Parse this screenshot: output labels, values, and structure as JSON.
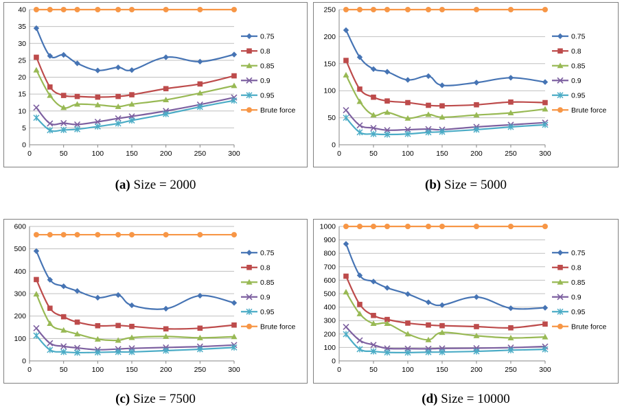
{
  "panels": [
    {
      "caption_letter": "(a)",
      "caption_text": "Size = 2000",
      "chart_data": {
        "type": "line",
        "x": [
          10,
          30,
          50,
          70,
          100,
          130,
          150,
          200,
          250,
          300
        ],
        "xticks": [
          0,
          50,
          100,
          150,
          200,
          250,
          300
        ],
        "xlim": [
          0,
          300
        ],
        "yticks": [
          0,
          5,
          10,
          15,
          20,
          25,
          30,
          35,
          40
        ],
        "ylim": [
          0,
          40
        ],
        "grid": true,
        "legend": "right",
        "series": [
          {
            "name": "0.75",
            "color": "#4674b4",
            "marker": "diamond",
            "values": [
              34.5,
              26.3,
              26.6,
              24.1,
              22.0,
              22.9,
              22.1,
              25.9,
              24.6,
              26.7
            ]
          },
          {
            "name": "0.8",
            "color": "#bd4b4b",
            "marker": "square",
            "values": [
              25.9,
              17.1,
              14.6,
              14.3,
              14.1,
              14.3,
              14.8,
              16.6,
              18.0,
              20.4
            ]
          },
          {
            "name": "0.85",
            "color": "#98b954",
            "marker": "triangle",
            "values": [
              22.1,
              14.6,
              11.0,
              12.0,
              11.8,
              11.3,
              12.0,
              13.3,
              15.3,
              17.5
            ]
          },
          {
            "name": "0.9",
            "color": "#7d60a0",
            "marker": "x",
            "values": [
              11.0,
              6.3,
              6.4,
              6.0,
              6.8,
              7.8,
              8.4,
              10.0,
              11.9,
              14.0
            ]
          },
          {
            "name": "0.95",
            "color": "#4bacc6",
            "marker": "star",
            "values": [
              8.0,
              4.3,
              4.4,
              4.6,
              5.4,
              6.3,
              7.2,
              9.1,
              11.2,
              13.1
            ]
          },
          {
            "name": "Brute force",
            "color": "#f79646",
            "marker": "circle",
            "values": [
              40,
              40,
              40,
              40,
              40,
              40,
              40,
              40,
              40,
              40
            ]
          }
        ]
      }
    },
    {
      "caption_letter": "(b)",
      "caption_text": "Size = 5000",
      "chart_data": {
        "type": "line",
        "x": [
          10,
          30,
          50,
          70,
          100,
          130,
          150,
          200,
          250,
          300
        ],
        "xticks": [
          0,
          50,
          100,
          150,
          200,
          250,
          300
        ],
        "xlim": [
          0,
          300
        ],
        "yticks": [
          0,
          50,
          100,
          150,
          200,
          250
        ],
        "ylim": [
          0,
          250
        ],
        "grid": true,
        "legend": "right",
        "series": [
          {
            "name": "0.75",
            "color": "#4674b4",
            "marker": "diamond",
            "values": [
              212,
              162,
              140,
              135,
              120,
              127,
              110,
              115,
              124,
              116
            ]
          },
          {
            "name": "0.8",
            "color": "#bd4b4b",
            "marker": "square",
            "values": [
              156,
              103,
              88,
              81,
              78,
              73,
              72,
              74,
              79,
              78
            ]
          },
          {
            "name": "0.85",
            "color": "#98b954",
            "marker": "triangle",
            "values": [
              129,
              80,
              55,
              60,
              49,
              56,
              51,
              55,
              59,
              66
            ]
          },
          {
            "name": "0.9",
            "color": "#7d60a0",
            "marker": "x",
            "values": [
              64,
              36,
              31,
              27,
              28,
              29,
              28,
              33,
              37,
              41
            ]
          },
          {
            "name": "0.95",
            "color": "#4bacc6",
            "marker": "star",
            "values": [
              50,
              23,
              20,
              19,
              20,
              23,
              24,
              28,
              33,
              37
            ]
          },
          {
            "name": "Brute force",
            "color": "#f79646",
            "marker": "circle",
            "values": [
              250,
              250,
              250,
              250,
              250,
              250,
              250,
              250,
              250,
              250
            ]
          }
        ]
      }
    },
    {
      "caption_letter": "(c)",
      "caption_text": "Size = 7500",
      "chart_data": {
        "type": "line",
        "x": [
          10,
          30,
          50,
          70,
          100,
          130,
          150,
          200,
          250,
          300
        ],
        "xticks": [
          0,
          50,
          100,
          150,
          200,
          250,
          300
        ],
        "xlim": [
          0,
          300
        ],
        "yticks": [
          0,
          100,
          200,
          300,
          400,
          500,
          600
        ],
        "ylim": [
          0,
          600
        ],
        "grid": true,
        "legend": "right",
        "series": [
          {
            "name": "0.75",
            "color": "#4674b4",
            "marker": "diamond",
            "values": [
              490,
              362,
              333,
              312,
              282,
              294,
              248,
              233,
              291,
              259
            ]
          },
          {
            "name": "0.8",
            "color": "#bd4b4b",
            "marker": "square",
            "values": [
              363,
              235,
              197,
              173,
              157,
              158,
              154,
              143,
              146,
              160
            ]
          },
          {
            "name": "0.85",
            "color": "#98b954",
            "marker": "triangle",
            "values": [
              298,
              167,
              137,
              120,
              97,
              92,
              104,
              109,
              103,
              108
            ]
          },
          {
            "name": "0.9",
            "color": "#7d60a0",
            "marker": "x",
            "values": [
              146,
              79,
              65,
              58,
              50,
              53,
              56,
              60,
              64,
              71
            ]
          },
          {
            "name": "0.95",
            "color": "#4bacc6",
            "marker": "star",
            "values": [
              113,
              49,
              40,
              37,
              38,
              40,
              40,
              46,
              52,
              60
            ]
          },
          {
            "name": "Brute force",
            "color": "#f79646",
            "marker": "circle",
            "values": [
              563,
              563,
              563,
              563,
              563,
              563,
              563,
              563,
              563,
              563
            ]
          }
        ]
      }
    },
    {
      "caption_letter": "(d)",
      "caption_text": "Size = 10000",
      "chart_data": {
        "type": "line",
        "x": [
          10,
          30,
          50,
          70,
          100,
          130,
          150,
          200,
          250,
          300
        ],
        "xticks": [
          0,
          50,
          100,
          150,
          200,
          250,
          300
        ],
        "xlim": [
          0,
          300
        ],
        "yticks": [
          0,
          100,
          200,
          300,
          400,
          500,
          600,
          700,
          800,
          900,
          1000
        ],
        "ylim": [
          0,
          1000
        ],
        "grid": true,
        "legend": "right",
        "series": [
          {
            "name": "0.75",
            "color": "#4674b4",
            "marker": "diamond",
            "values": [
              870,
              636,
              590,
              543,
              497,
              436,
              415,
              475,
              392,
              395
            ]
          },
          {
            "name": "0.8",
            "color": "#bd4b4b",
            "marker": "square",
            "values": [
              630,
              420,
              338,
              308,
              281,
              267,
              262,
              255,
              246,
              274
            ]
          },
          {
            "name": "0.85",
            "color": "#98b954",
            "marker": "triangle",
            "values": [
              512,
              350,
              278,
              278,
              200,
              157,
              211,
              187,
              171,
              178
            ]
          },
          {
            "name": "0.9",
            "color": "#7d60a0",
            "marker": "x",
            "values": [
              253,
              153,
              119,
              93,
              91,
              90,
              93,
              95,
              99,
              107
            ]
          },
          {
            "name": "0.95",
            "color": "#4bacc6",
            "marker": "star",
            "values": [
              199,
              87,
              71,
              63,
              62,
              65,
              66,
              71,
              80,
              86
            ]
          },
          {
            "name": "Brute force",
            "color": "#f79646",
            "marker": "circle",
            "values": [
              1000,
              1000,
              1000,
              1000,
              1000,
              1000,
              1000,
              1000,
              1000,
              1000
            ]
          }
        ]
      }
    }
  ]
}
